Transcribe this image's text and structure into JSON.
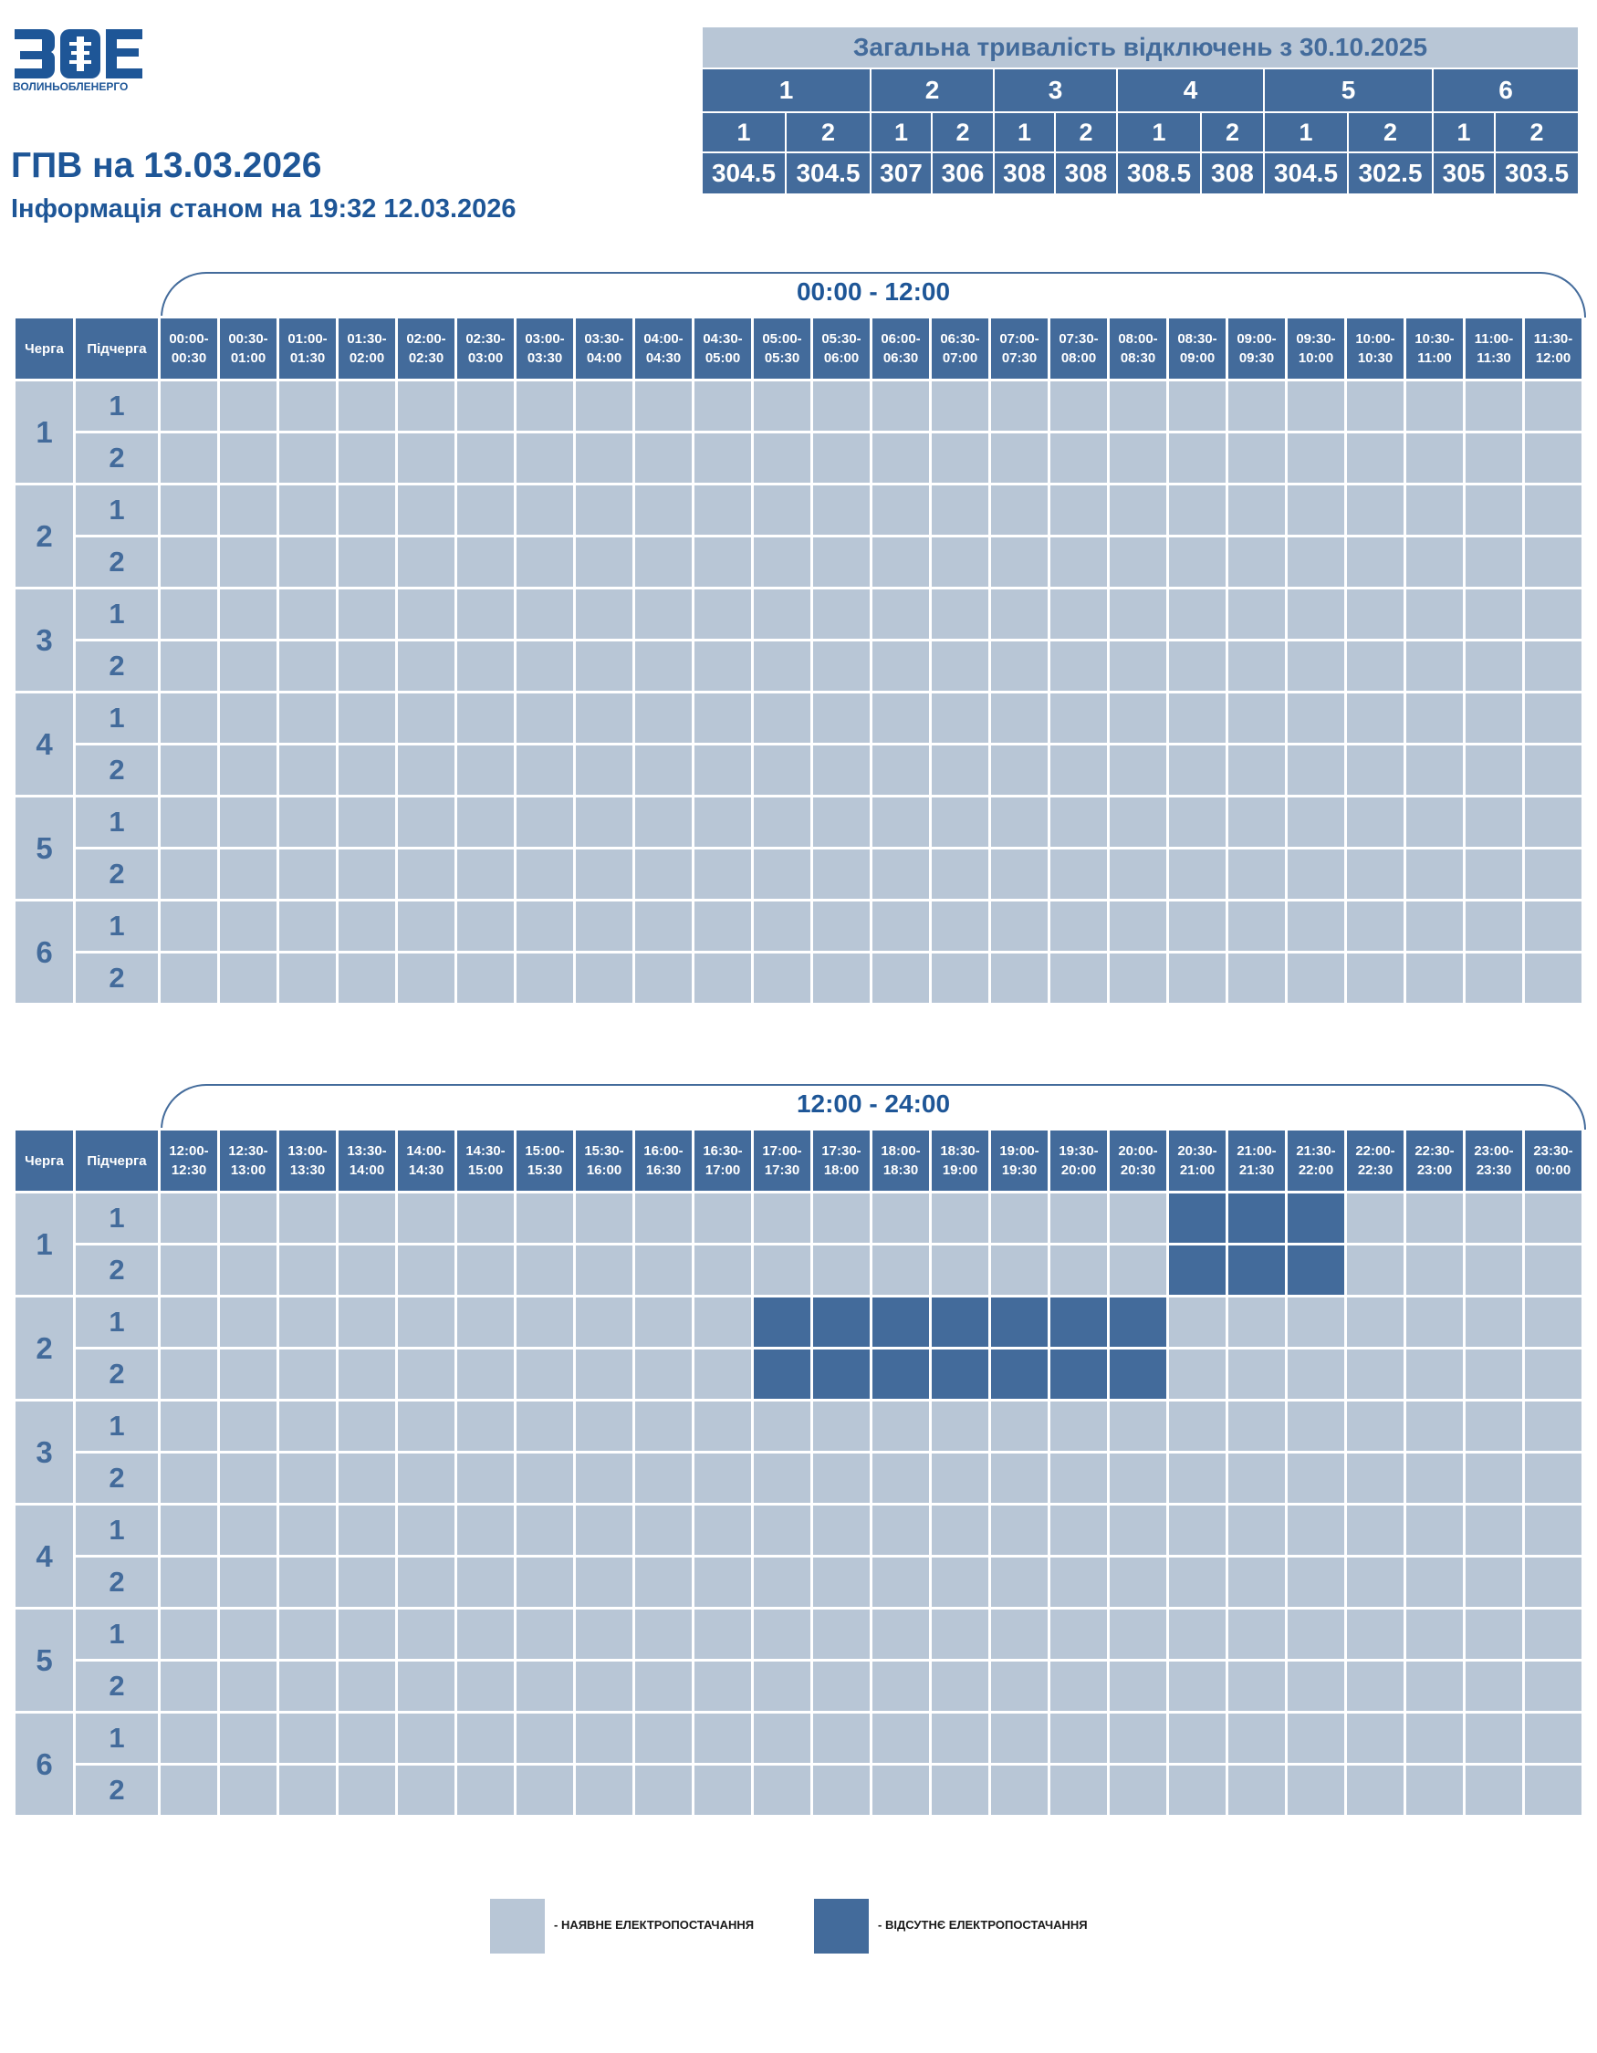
{
  "logo": {
    "text": "ВОЛИНЬОБЛЕНЕРГО",
    "mark_letters": "ЗОЕ",
    "brand_color": "#1e5697"
  },
  "header": {
    "title": "ГПВ на 13.03.2026",
    "subtitle": "Інформація станом на 19:32 12.03.2026"
  },
  "summary": {
    "title": "Загальна тривалість відключень з 30.10.2025",
    "queues": [
      "1",
      "2",
      "3",
      "4",
      "5",
      "6"
    ],
    "subqueues": [
      "1",
      "2",
      "1",
      "2",
      "1",
      "2",
      "1",
      "2",
      "1",
      "2",
      "1",
      "2"
    ],
    "values": [
      "304.5",
      "304.5",
      "307",
      "306",
      "308",
      "308",
      "308.5",
      "308",
      "304.5",
      "302.5",
      "305",
      "303.5"
    ]
  },
  "schedule": {
    "col_queue": "Черга",
    "col_subqueue": "Підчерга",
    "queues": [
      "1",
      "2",
      "3",
      "4",
      "5",
      "6"
    ],
    "subqueues": [
      "1",
      "2"
    ],
    "blocks": [
      {
        "range_label": "00:00 - 12:00",
        "slots": [
          "00:00-|00:30",
          "00:30-|01:00",
          "01:00-|01:30",
          "01:30-|02:00",
          "02:00-|02:30",
          "02:30-|03:00",
          "03:00-|03:30",
          "03:30-|04:00",
          "04:00-|04:30",
          "04:30-|05:00",
          "05:00-|05:30",
          "05:30-|06:00",
          "06:00-|06:30",
          "06:30-|07:00",
          "07:00-|07:30",
          "07:30-|08:00",
          "08:00-|08:30",
          "08:30-|09:00",
          "09:00-|09:30",
          "09:30-|10:00",
          "10:00-|10:30",
          "10:30-|11:00",
          "11:00-|11:30",
          "11:30-|12:00"
        ],
        "outages": []
      },
      {
        "range_label": "12:00 - 24:00",
        "slots": [
          "12:00-|12:30",
          "12:30-|13:00",
          "13:00-|13:30",
          "13:30-|14:00",
          "14:00-|14:30",
          "14:30-|15:00",
          "15:00-|15:30",
          "15:30-|16:00",
          "16:00-|16:30",
          "16:30-|17:00",
          "17:00-|17:30",
          "17:30-|18:00",
          "18:00-|18:30",
          "18:30-|19:00",
          "19:00-|19:30",
          "19:30-|20:00",
          "20:00-|20:30",
          "20:30-|21:00",
          "21:00-|21:30",
          "21:30-|22:00",
          "22:00-|22:30",
          "22:30-|23:00",
          "23:00-|23:30",
          "23:30-|00:00"
        ],
        "outages": [
          {
            "queue": "1",
            "subqueue": "1",
            "slots": [
              17,
              18,
              19
            ]
          },
          {
            "queue": "1",
            "subqueue": "2",
            "slots": [
              17,
              18,
              19
            ]
          },
          {
            "queue": "2",
            "subqueue": "1",
            "slots": [
              10,
              11,
              12,
              13,
              14,
              15,
              16
            ]
          },
          {
            "queue": "2",
            "subqueue": "2",
            "slots": [
              10,
              11,
              12,
              13,
              14,
              15,
              16
            ]
          }
        ]
      }
    ]
  },
  "legend": {
    "on_label": "- НАЯВНЕ ЕЛЕКТРОПОСТАЧАННЯ",
    "off_label": "- ВІДСУТНЄ ЕЛЕКТРОПОСТАЧАННЯ",
    "on_color": "#b8c6d6",
    "off_color": "#436b9b"
  }
}
